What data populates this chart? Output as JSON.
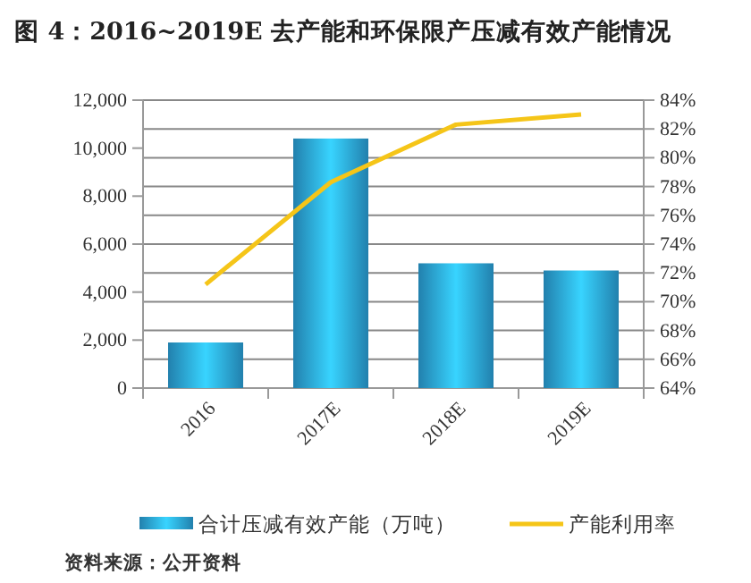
{
  "chart_data": {
    "type": "bar",
    "title": "图 4：2016~2019E 去产能和环保限产压减有效产能情况",
    "categories": [
      "2016",
      "2017E",
      "2018E",
      "2019E"
    ],
    "series": [
      {
        "name": "合计压减有效产能（万吨）",
        "color": "#2a9fd6",
        "values": [
          1900,
          10400,
          5200,
          4900
        ]
      },
      {
        "name": "产能利用率",
        "type": "line",
        "axis": "y2",
        "color": "#f5c518",
        "values": [
          71.2,
          78.3,
          82.3,
          83.0
        ]
      }
    ],
    "ylim": [
      0,
      12000
    ],
    "yticks": [
      {
        "value": 0,
        "label": "0"
      },
      {
        "value": 2000,
        "label": "2,000"
      },
      {
        "value": 4000,
        "label": "4,000"
      },
      {
        "value": 6000,
        "label": "6,000"
      },
      {
        "value": 8000,
        "label": "8,000"
      },
      {
        "value": 10000,
        "label": "10,000"
      },
      {
        "value": 12000,
        "label": "12,000"
      }
    ],
    "y2lim": [
      64,
      84
    ],
    "y2ticks": [
      {
        "value": 64,
        "label": "64%"
      },
      {
        "value": 66,
        "label": "66%"
      },
      {
        "value": 68,
        "label": "68%"
      },
      {
        "value": 70,
        "label": "70%"
      },
      {
        "value": 72,
        "label": "72%"
      },
      {
        "value": 74,
        "label": "74%"
      },
      {
        "value": 76,
        "label": "76%"
      },
      {
        "value": 78,
        "label": "78%"
      },
      {
        "value": 80,
        "label": "80%"
      },
      {
        "value": 82,
        "label": "82%"
      },
      {
        "value": 84,
        "label": "84%"
      }
    ],
    "grid": "y2",
    "legend": "bottom",
    "marker": "none",
    "annotations": [
      "资料来源：公开资料"
    ]
  }
}
